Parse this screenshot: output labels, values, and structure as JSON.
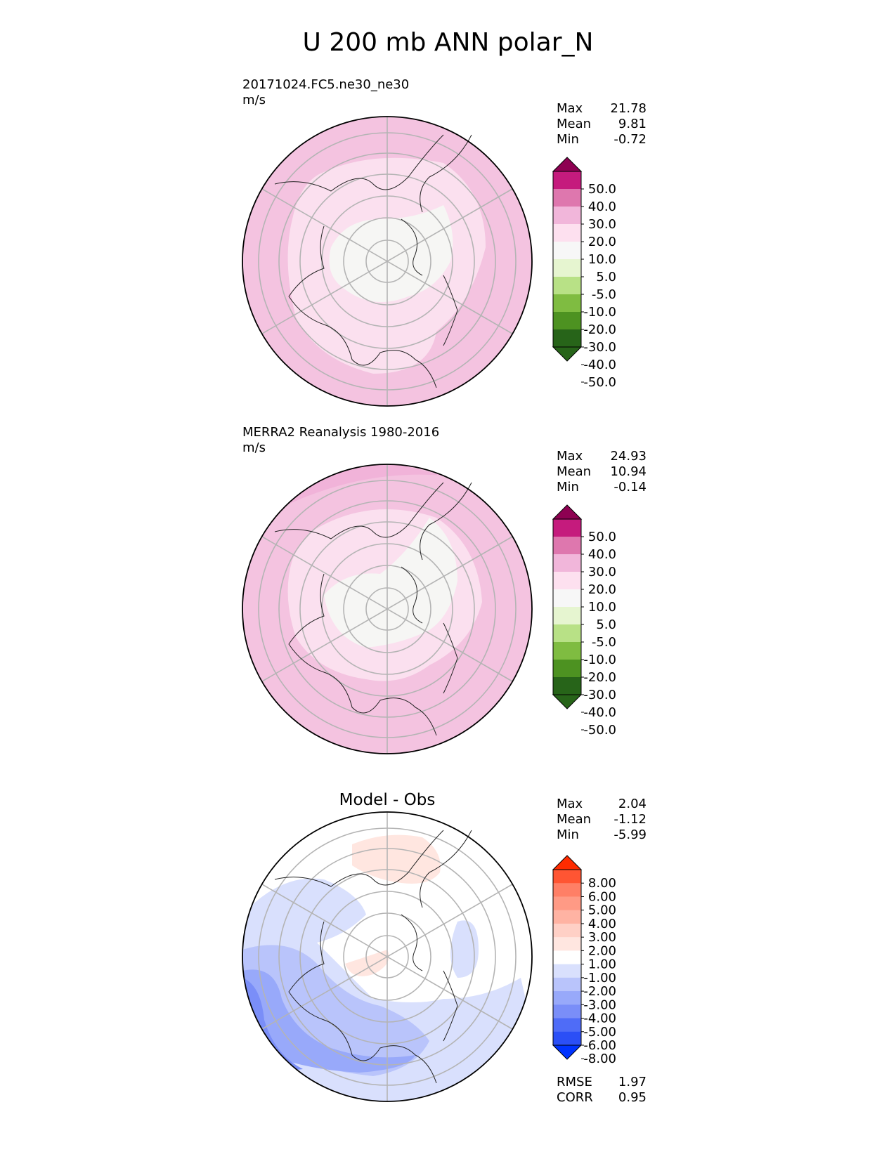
{
  "title": "U 200 mb ANN polar_N",
  "chart_data": [
    {
      "type": "heatmap",
      "projection": "north-polar-stereographic",
      "title": "20171024.FC5.ne30_ne30",
      "units": "m/s",
      "stats": {
        "max_label": "Max",
        "max": "21.78",
        "mean_label": "Mean",
        "mean": "9.81",
        "min_label": "Min",
        "min": "-0.72"
      },
      "colorbar": {
        "levels": [
          "50.0",
          "40.0",
          "30.0",
          "20.0",
          "10.0",
          "5.0",
          "-5.0",
          "-10.0",
          "-20.0",
          "-30.0",
          "-40.0",
          "-50.0"
        ],
        "colors": [
          "#8e0152",
          "#c51b7d",
          "#de77ae",
          "#f1b6da",
          "#fde0ef",
          "#f7f7f7",
          "#e6f5d0",
          "#b8e186",
          "#7fbc41",
          "#4d9221",
          "#276419",
          "#276419"
        ]
      },
      "field_colors": [
        "#f4c3e0",
        "#fbe0ef",
        "#f6f6f4",
        "#de77ae"
      ]
    },
    {
      "type": "heatmap",
      "projection": "north-polar-stereographic",
      "title": "MERRA2 Reanalysis 1980-2016",
      "units": "m/s",
      "stats": {
        "max_label": "Max",
        "max": "24.93",
        "mean_label": "Mean",
        "mean": "10.94",
        "min_label": "Min",
        "min": "-0.14"
      },
      "colorbar": {
        "levels": [
          "50.0",
          "40.0",
          "30.0",
          "20.0",
          "10.0",
          "5.0",
          "-5.0",
          "-10.0",
          "-20.0",
          "-30.0",
          "-40.0",
          "-50.0"
        ],
        "colors": [
          "#8e0152",
          "#c51b7d",
          "#de77ae",
          "#f1b6da",
          "#fde0ef",
          "#f7f7f7",
          "#e6f5d0",
          "#b8e186",
          "#7fbc41",
          "#4d9221",
          "#276419",
          "#276419"
        ]
      },
      "field_colors": [
        "#f4c3e0",
        "#fbe0ef",
        "#f6f6f4",
        "#e9a3cf"
      ]
    },
    {
      "type": "heatmap",
      "projection": "north-polar-stereographic",
      "title": "Model - Obs",
      "stats": {
        "max_label": "Max",
        "max": "2.04",
        "mean_label": "Mean",
        "mean": "-1.12",
        "min_label": "Min",
        "min": "-5.99"
      },
      "colorbar": {
        "levels": [
          "8.00",
          "6.00",
          "5.00",
          "4.00",
          "3.00",
          "2.00",
          "1.00",
          "-1.00",
          "-2.00",
          "-3.00",
          "-4.00",
          "-5.00",
          "-6.00",
          "-8.00"
        ],
        "colors": [
          "#ff2b00",
          "#ff5533",
          "#ff7f66",
          "#ff9a85",
          "#ffb3a3",
          "#ffd0c6",
          "#ffe6e0",
          "#ffffff",
          "#d9e0fd",
          "#b9c4fb",
          "#98a9fa",
          "#7a8ef8",
          "#4f6cf7",
          "#2b4ff6",
          "#0033ff"
        ]
      },
      "metrics": {
        "rmse_label": "RMSE",
        "rmse": "1.97",
        "corr_label": "CORR",
        "corr": "0.95"
      }
    }
  ]
}
